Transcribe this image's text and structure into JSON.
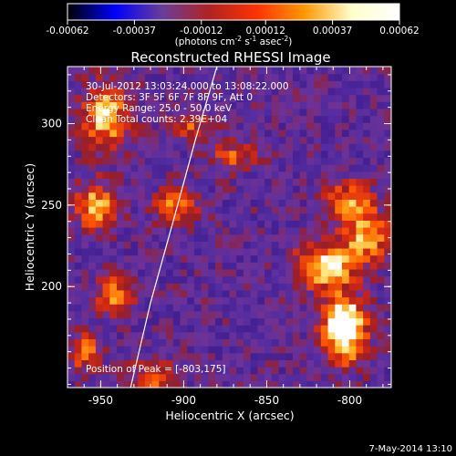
{
  "chart_data": {
    "type": "heatmap",
    "title": "Reconstructed RHESSI Image",
    "xlabel": "Heliocentric X (arcsec)",
    "ylabel": "Heliocentric Y (arcsec)",
    "xlim": [
      -970,
      -775
    ],
    "ylim": [
      138,
      335
    ],
    "xticks": [
      -950,
      -900,
      -850,
      -800
    ],
    "xtick_labels": [
      "-950",
      "-900",
      "-850",
      "-800"
    ],
    "yticks": [
      200,
      250,
      300
    ],
    "ytick_labels": [
      "200",
      "250",
      "300"
    ],
    "colorbar": {
      "min": -0.00062,
      "max": 0.00062,
      "ticks": [
        -0.00062,
        -0.00037,
        -0.00012,
        0.00012,
        0.00037,
        0.00062
      ],
      "tick_labels": [
        "-0.00062",
        "-0.00037",
        "-0.00012",
        "0.00012",
        "0.00037",
        "0.00062"
      ],
      "units_label": "(photons cm",
      "units_exp1": "-2",
      "units_mid": " s",
      "units_exp2": "-1",
      "units_tail": " asec",
      "units_exp3": "-2",
      "units_close": ")",
      "stops": [
        "#000000",
        "#0000ff",
        "#6a3d9a",
        "#b22222",
        "#ff3300",
        "#ff9900",
        "#ffffcc",
        "#ffffff"
      ]
    },
    "annotations": [
      "30-Jul-2012 13:03:24.000 to 13:08:22.000",
      "Detectors: 3F 5F 6F 7F 8F 9F, Att 0",
      "Energy Range: 25.0 - 50.0 keV",
      "Clean     Total counts: 2.39E+04"
    ],
    "peak_label": "Position of Peak = [-803,175]",
    "peak": [
      -803,
      175
    ],
    "limb_curve": [
      [
        -932,
        138
      ],
      [
        -920,
        190
      ],
      [
        -905,
        245
      ],
      [
        -893,
        290
      ],
      [
        -880,
        335
      ]
    ],
    "bright_regions": [
      {
        "x": -803,
        "y": 175,
        "sx": 9,
        "sy": 14,
        "amp": 1.0
      },
      {
        "x": -815,
        "y": 213,
        "sx": 12,
        "sy": 9,
        "amp": 0.8
      },
      {
        "x": -790,
        "y": 230,
        "sx": 10,
        "sy": 10,
        "amp": 0.6
      },
      {
        "x": -800,
        "y": 252,
        "sx": 10,
        "sy": 9,
        "amp": 0.55
      },
      {
        "x": -947,
        "y": 305,
        "sx": 10,
        "sy": 14,
        "amp": 0.65
      },
      {
        "x": -953,
        "y": 250,
        "sx": 9,
        "sy": 10,
        "amp": 0.6
      },
      {
        "x": -942,
        "y": 195,
        "sx": 8,
        "sy": 8,
        "amp": 0.55
      },
      {
        "x": -905,
        "y": 250,
        "sx": 9,
        "sy": 7,
        "amp": 0.5
      },
      {
        "x": -918,
        "y": 145,
        "sx": 9,
        "sy": 7,
        "amp": 0.5
      },
      {
        "x": -960,
        "y": 160,
        "sx": 7,
        "sy": 8,
        "amp": 0.45
      },
      {
        "x": -870,
        "y": 280,
        "sx": 9,
        "sy": 6,
        "amp": 0.4
      },
      {
        "x": -898,
        "y": 300,
        "sx": 9,
        "sy": 6,
        "amp": 0.4
      }
    ],
    "grid": false
  },
  "footer": {
    "date": "7-May-2014 13:10"
  }
}
